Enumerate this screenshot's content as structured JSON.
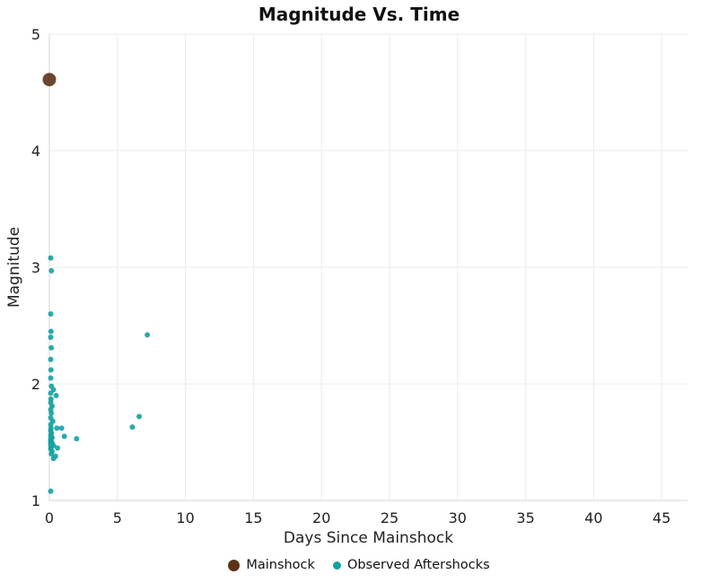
{
  "chart_data": {
    "type": "scatter",
    "title": "Magnitude Vs. Time",
    "xlabel": "Days Since Mainshock",
    "ylabel": "Magnitude",
    "xlim": [
      0,
      46.9
    ],
    "ylim": [
      1,
      5
    ],
    "xticks": [
      0,
      5,
      10,
      15,
      20,
      25,
      30,
      35,
      40,
      45
    ],
    "yticks": [
      1,
      2,
      3,
      4,
      5
    ],
    "grid": true,
    "legend_position": "bottom",
    "series": [
      {
        "name": "Mainshock",
        "color": "#5c3317",
        "marker_radius": 7.5,
        "points": [
          [
            0.0,
            4.61
          ]
        ]
      },
      {
        "name": "Observed Aftershocks",
        "color": "#14a1a1",
        "marker_radius": 3,
        "points": [
          [
            0.1,
            3.08
          ],
          [
            0.15,
            2.97
          ],
          [
            0.1,
            2.6
          ],
          [
            0.12,
            2.45
          ],
          [
            0.1,
            2.4
          ],
          [
            0.14,
            2.31
          ],
          [
            0.1,
            2.21
          ],
          [
            0.12,
            2.12
          ],
          [
            0.1,
            2.05
          ],
          [
            0.15,
            1.98
          ],
          [
            0.3,
            1.95
          ],
          [
            0.1,
            1.92
          ],
          [
            0.5,
            1.9
          ],
          [
            0.12,
            1.87
          ],
          [
            0.1,
            1.84
          ],
          [
            0.2,
            1.81
          ],
          [
            0.1,
            1.78
          ],
          [
            0.14,
            1.75
          ],
          [
            0.1,
            1.71
          ],
          [
            0.25,
            1.68
          ],
          [
            0.1,
            1.65
          ],
          [
            0.12,
            1.62
          ],
          [
            0.55,
            1.62
          ],
          [
            0.9,
            1.62
          ],
          [
            0.1,
            1.6
          ],
          [
            0.15,
            1.58
          ],
          [
            0.1,
            1.56
          ],
          [
            0.2,
            1.54
          ],
          [
            0.1,
            1.53
          ],
          [
            0.12,
            1.52
          ],
          [
            0.1,
            1.51
          ],
          [
            0.15,
            1.5
          ],
          [
            0.1,
            1.5
          ],
          [
            0.2,
            1.49
          ],
          [
            0.1,
            1.48
          ],
          [
            0.3,
            1.47
          ],
          [
            0.12,
            1.46
          ],
          [
            0.6,
            1.45
          ],
          [
            0.1,
            1.44
          ],
          [
            0.2,
            1.42
          ],
          [
            0.14,
            1.4
          ],
          [
            0.45,
            1.38
          ],
          [
            0.3,
            1.36
          ],
          [
            1.1,
            1.55
          ],
          [
            2.0,
            1.53
          ],
          [
            6.1,
            1.63
          ],
          [
            6.6,
            1.72
          ],
          [
            7.2,
            2.42
          ],
          [
            0.1,
            1.08
          ]
        ]
      }
    ]
  }
}
